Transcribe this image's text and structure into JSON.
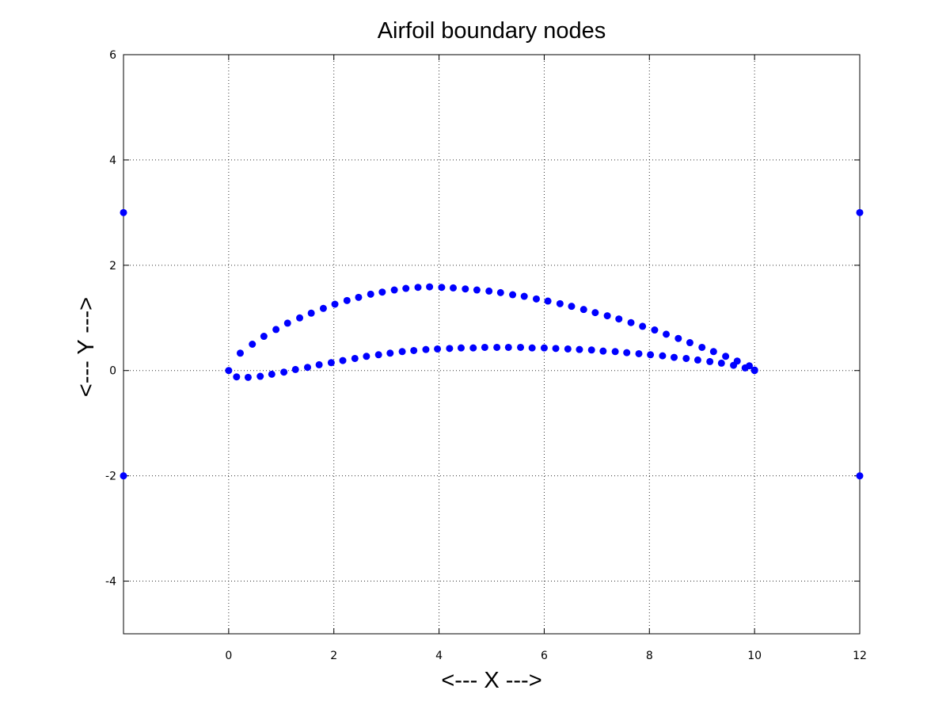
{
  "chart_data": {
    "type": "scatter",
    "title": "Airfoil boundary nodes",
    "xlabel": "<--- X --->",
    "ylabel": "<--- Y --->",
    "xlim": [
      -2,
      12
    ],
    "ylim": [
      -5,
      6
    ],
    "xticks": [
      0,
      2,
      4,
      6,
      8,
      10,
      12
    ],
    "yticks": [
      -4,
      -2,
      0,
      2,
      4,
      6
    ],
    "grid": true,
    "marker_color": "#0000ff",
    "series": [
      {
        "points": [
          [
            0,
            0
          ],
          [
            0.22,
            0.33
          ],
          [
            0.45,
            0.5
          ],
          [
            0.67,
            0.65
          ],
          [
            0.9,
            0.78
          ],
          [
            1.12,
            0.9
          ],
          [
            1.35,
            1.0
          ],
          [
            1.57,
            1.09
          ],
          [
            1.8,
            1.18
          ],
          [
            2.02,
            1.26
          ],
          [
            2.25,
            1.33
          ],
          [
            2.47,
            1.39
          ],
          [
            2.7,
            1.45
          ],
          [
            2.92,
            1.49
          ],
          [
            3.15,
            1.53
          ],
          [
            3.37,
            1.56
          ],
          [
            3.6,
            1.58
          ],
          [
            3.82,
            1.59
          ],
          [
            4.05,
            1.58
          ],
          [
            4.27,
            1.57
          ],
          [
            4.5,
            1.55
          ],
          [
            4.72,
            1.53
          ],
          [
            4.95,
            1.51
          ],
          [
            5.17,
            1.48
          ],
          [
            5.4,
            1.44
          ],
          [
            5.62,
            1.41
          ],
          [
            5.85,
            1.36
          ],
          [
            6.07,
            1.32
          ],
          [
            6.3,
            1.27
          ],
          [
            6.52,
            1.22
          ],
          [
            6.75,
            1.16
          ],
          [
            6.97,
            1.1
          ],
          [
            7.2,
            1.04
          ],
          [
            7.42,
            0.98
          ],
          [
            7.65,
            0.91
          ],
          [
            7.87,
            0.84
          ],
          [
            8.1,
            0.77
          ],
          [
            8.32,
            0.69
          ],
          [
            8.55,
            0.61
          ],
          [
            8.77,
            0.53
          ],
          [
            9.0,
            0.44
          ],
          [
            9.22,
            0.36
          ],
          [
            9.45,
            0.27
          ],
          [
            9.67,
            0.18
          ],
          [
            9.9,
            0.09
          ],
          [
            10.0,
            0.01
          ],
          [
            0.15,
            -0.12
          ],
          [
            0.37,
            -0.13
          ],
          [
            0.6,
            -0.11
          ],
          [
            0.82,
            -0.07
          ],
          [
            1.05,
            -0.03
          ],
          [
            1.27,
            0.02
          ],
          [
            1.5,
            0.06
          ],
          [
            1.72,
            0.11
          ],
          [
            1.95,
            0.15
          ],
          [
            2.17,
            0.19
          ],
          [
            2.4,
            0.23
          ],
          [
            2.62,
            0.27
          ],
          [
            2.85,
            0.3
          ],
          [
            3.07,
            0.33
          ],
          [
            3.3,
            0.36
          ],
          [
            3.52,
            0.38
          ],
          [
            3.75,
            0.4
          ],
          [
            3.97,
            0.41
          ],
          [
            4.2,
            0.42
          ],
          [
            4.42,
            0.43
          ],
          [
            4.65,
            0.43
          ],
          [
            4.87,
            0.44
          ],
          [
            5.1,
            0.44
          ],
          [
            5.32,
            0.44
          ],
          [
            5.55,
            0.44
          ],
          [
            5.77,
            0.43
          ],
          [
            6.0,
            0.43
          ],
          [
            6.22,
            0.42
          ],
          [
            6.45,
            0.41
          ],
          [
            6.67,
            0.4
          ],
          [
            6.9,
            0.39
          ],
          [
            7.12,
            0.37
          ],
          [
            7.35,
            0.36
          ],
          [
            7.57,
            0.34
          ],
          [
            7.8,
            0.32
          ],
          [
            8.02,
            0.3
          ],
          [
            8.25,
            0.28
          ],
          [
            8.47,
            0.25
          ],
          [
            8.7,
            0.23
          ],
          [
            8.92,
            0.2
          ],
          [
            9.15,
            0.17
          ],
          [
            9.37,
            0.14
          ],
          [
            9.6,
            0.1
          ],
          [
            9.82,
            0.05
          ],
          [
            10.0,
            0
          ],
          [
            -2,
            3
          ],
          [
            -2,
            -2
          ],
          [
            12,
            3
          ],
          [
            12,
            -2
          ]
        ]
      }
    ]
  }
}
